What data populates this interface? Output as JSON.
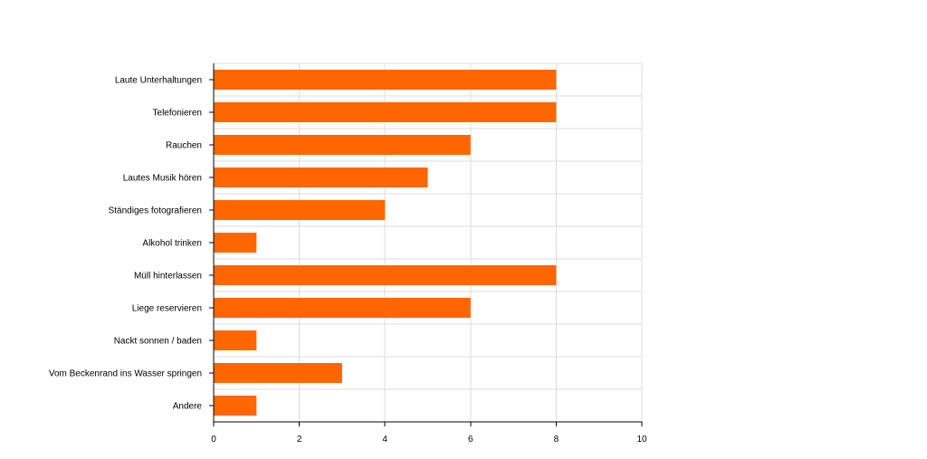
{
  "chart_data": {
    "type": "bar",
    "orientation": "horizontal",
    "title": "",
    "xlabel": "",
    "ylabel": "",
    "categories": [
      "Laute Unterhaltungen",
      "Telefonieren",
      "Rauchen",
      "Lautes Musik hören",
      "Ständiges fotografieren",
      "Alkohol trinken",
      "Müll hinterlassen",
      "Liege reservieren",
      "Nackt sonnen / baden",
      "Vom Beckenrand ins Wasser springen",
      "Andere"
    ],
    "values": [
      8,
      8,
      6,
      5,
      4,
      1,
      8,
      6,
      1,
      3,
      1
    ],
    "xlim": [
      0,
      10
    ],
    "xticks": [
      0,
      2,
      4,
      6,
      8,
      10
    ],
    "grid": true,
    "legend": "none",
    "bar_color": "#ff6600",
    "grid_color": "#dddddd",
    "axis_color": "#000000"
  }
}
